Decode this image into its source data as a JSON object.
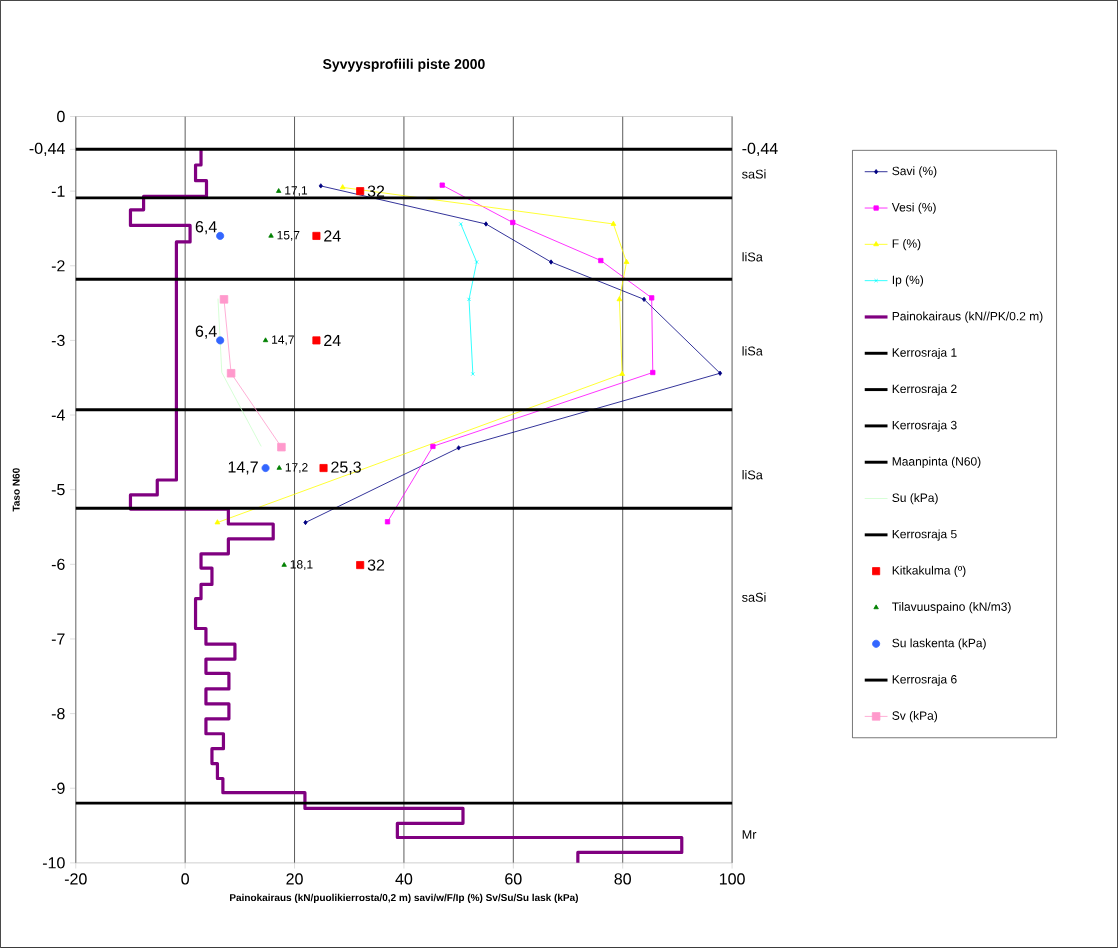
{
  "chart_data": {
    "type": "line",
    "title": "Syvyysprofiili piste 2000",
    "xlabel": "Painokairaus (kN/puolikierrosta/0,2 m)  savi/w/F/Ip (%)  Sv/Su/Su lask (kPa)",
    "ylabel": "Taso N60",
    "xlim": [
      -20,
      100
    ],
    "ylim": [
      -10,
      0
    ],
    "xticks": [
      -20,
      0,
      20,
      40,
      60,
      80,
      100
    ],
    "yticks": [
      0,
      {
        "value": -0.44,
        "label": "-0,44"
      },
      -1,
      -2,
      -3,
      -4,
      -5,
      -6,
      -7,
      -8,
      -9,
      -10
    ],
    "grid": "x",
    "legend": "right",
    "series": [
      {
        "name": "Savi (%)",
        "color": "#000080",
        "marker": "diamond",
        "x": [
          24.8,
          55.0,
          66.9,
          83.9,
          97.8,
          50.0,
          22.0
        ],
        "values": [
          -0.93,
          -1.44,
          -1.95,
          -2.45,
          -3.44,
          -4.44,
          -5.44
        ]
      },
      {
        "name": "Vesi (%)",
        "color": "#ff00ff",
        "marker": "square",
        "x": [
          47.0,
          59.9,
          76.0,
          85.3,
          85.5,
          45.3,
          37.0
        ],
        "values": [
          -0.92,
          -1.42,
          -1.93,
          -2.43,
          -3.43,
          -4.42,
          -5.43
        ]
      },
      {
        "name": "F (%)",
        "color": "#ffff00",
        "marker": "triangle",
        "x": [
          28.8,
          78.3,
          80.7,
          79.4,
          79.9,
          5.9
        ],
        "values": [
          -0.95,
          -1.44,
          -1.95,
          -2.45,
          -3.45,
          -5.44
        ]
      },
      {
        "name": "Ip (%)",
        "color": "#00ffff",
        "marker": "cross",
        "x": [
          50.4,
          53.3,
          51.9,
          52.6
        ],
        "values": [
          -1.44,
          -1.95,
          -2.45,
          -3.45
        ]
      },
      {
        "name": "Painokairaus (kN//PK/0.2 m)",
        "color": "#800080",
        "marker": "none",
        "x": [
          2.9,
          2.9,
          1.9,
          1.9,
          3.9,
          3.9,
          -7.6,
          -7.6,
          -10,
          -10,
          0.9,
          0.9,
          -1.6,
          -1.6,
          -5.1,
          -5.1,
          -10,
          -10,
          7.9,
          7.9,
          16.1,
          16.1,
          7.9,
          7.9,
          2.9,
          2.9,
          4.9,
          4.9,
          2.9,
          2.9,
          1.9,
          1.9,
          3.8,
          3.8,
          9.1,
          9.1,
          3.8,
          3.8,
          8,
          8,
          3.8,
          3.8,
          8,
          8,
          3.8,
          3.8,
          7,
          7,
          4.9,
          4.9,
          5.9,
          5.9,
          6.9,
          6.9,
          21.9,
          21.9,
          50.8,
          50.8,
          38.8,
          38.8,
          90.8,
          90.8,
          71.8,
          71.8
        ],
        "values": [
          -0.44,
          -0.65,
          -0.65,
          -0.86,
          -0.86,
          -1.07,
          -1.07,
          -1.25,
          -1.25,
          -1.46,
          -1.46,
          -1.68,
          -1.68,
          -4.87,
          -4.87,
          -5.07,
          -5.07,
          -5.26,
          -5.26,
          -5.46,
          -5.46,
          -5.66,
          -5.66,
          -5.86,
          -5.86,
          -6.05,
          -6.05,
          -6.27,
          -6.27,
          -6.46,
          -6.46,
          -6.86,
          -6.86,
          -7.07,
          -7.07,
          -7.27,
          -7.27,
          -7.46,
          -7.46,
          -7.67,
          -7.67,
          -7.87,
          -7.87,
          -8.07,
          -8.07,
          -8.27,
          -8.27,
          -8.47,
          -8.47,
          -8.67,
          -8.67,
          -8.87,
          -8.87,
          -9.06,
          -9.06,
          -9.27,
          -9.27,
          -9.47,
          -9.47,
          -9.66,
          -9.66,
          -9.86,
          -9.86,
          -10
        ]
      },
      {
        "name": "Kerrosraja 1",
        "color": "#000000",
        "marker": "none",
        "x": [
          -20,
          100
        ],
        "values": [
          -1.09,
          -1.09
        ]
      },
      {
        "name": "Kerrosraja 2",
        "color": "#000000",
        "marker": "none",
        "x": [
          -20,
          100
        ],
        "values": [
          -2.18,
          -2.18
        ]
      },
      {
        "name": "Kerrosraja 3",
        "color": "#000000",
        "marker": "none",
        "x": [
          -20,
          100
        ],
        "values": [
          -3.93,
          -3.93
        ]
      },
      {
        "name": "Maanpinta (N60)",
        "color": "#000000",
        "marker": "none",
        "x": [
          -20,
          100
        ],
        "values": [
          -0.44,
          -0.44
        ]
      },
      {
        "name": "Su (kPa)",
        "color": "#ccffcc",
        "marker": "none",
        "x": [
          6.0,
          6.7,
          13.9
        ],
        "values": [
          -2.44,
          -3.43,
          -4.42
        ]
      },
      {
        "name": "Kerrosraja 5",
        "color": "#000000",
        "marker": "none",
        "x": [
          -20,
          100
        ],
        "values": [
          -5.25,
          -5.25
        ]
      },
      {
        "name": "Kitkakulma (º)",
        "type": "scatter",
        "color": "#ff0000",
        "marker": "square",
        "x": [
          32,
          24,
          24,
          25.3,
          32
        ],
        "values": [
          -1.0,
          -1.6,
          -3.0,
          -4.71,
          -6.01
        ]
      },
      {
        "name": "Tilavuuspaino (kN/m3)",
        "type": "scatter",
        "color": "#008000",
        "marker": "triangle",
        "x": [
          17.1,
          15.7,
          14.7,
          17.2,
          18.1
        ],
        "values": [
          -1.0,
          -1.6,
          -3.0,
          -4.71,
          -6.01
        ]
      },
      {
        "name": "Su laskenta (kPa)",
        "type": "scatter",
        "color": "#3366ff",
        "marker": "circle",
        "x": [
          6.4,
          6.4,
          14.7
        ],
        "values": [
          -1.6,
          -3.0,
          -4.71
        ]
      },
      {
        "name": "Kerrosraja 6",
        "color": "#000000",
        "marker": "none",
        "x": [
          -20,
          100
        ],
        "values": [
          -9.2,
          -9.2
        ]
      },
      {
        "name": "Sv (kPa)",
        "color": "#ff99cc",
        "marker": "square",
        "x": [
          7.1,
          8.4,
          17.6
        ],
        "values": [
          -2.45,
          -3.44,
          -4.43
        ]
      }
    ],
    "annotations": [
      {
        "text": "-0,44",
        "x": 100,
        "y": -0.44
      },
      {
        "text": "32",
        "x": 32,
        "y": -1.0
      },
      {
        "text": "24",
        "x": 24,
        "y": -1.6
      },
      {
        "text": "24",
        "x": 24,
        "y": -3.0
      },
      {
        "text": "25,3",
        "x": 25.3,
        "y": -4.71
      },
      {
        "text": "32",
        "x": 32,
        "y": -6.01
      },
      {
        "text": "17,1",
        "x": 17.1,
        "y": -1.0
      },
      {
        "text": "15,7",
        "x": 15.7,
        "y": -1.6
      },
      {
        "text": "14,7",
        "x": 14.7,
        "y": -3.0
      },
      {
        "text": "17,2",
        "x": 17.2,
        "y": -4.71
      },
      {
        "text": "18,1",
        "x": 18.1,
        "y": -6.01
      },
      {
        "text": "6,4",
        "x": 6.4,
        "y": -1.6
      },
      {
        "text": "6,4",
        "x": 6.4,
        "y": -3.0
      },
      {
        "text": "14,7",
        "x": 14.7,
        "y": -4.71
      },
      "saSi",
      "liSa",
      "liSa",
      "liSa",
      "saSi",
      "Mr"
    ]
  }
}
